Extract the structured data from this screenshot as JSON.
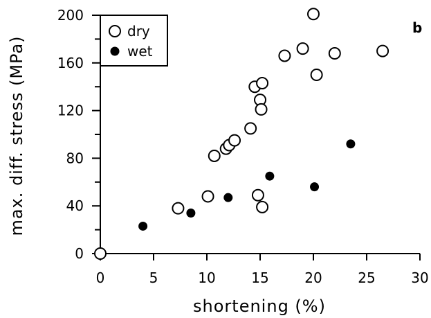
{
  "chart_data": {
    "type": "scatter",
    "panel_label": "b",
    "xlabel": "shortening (%)",
    "ylabel": "max. diff. stress (MPa)",
    "xlim": [
      0,
      30
    ],
    "ylim": [
      0,
      200
    ],
    "x_ticks": [
      0,
      5,
      10,
      15,
      20,
      25,
      30
    ],
    "y_ticks": [
      0,
      40,
      80,
      120,
      160,
      200
    ],
    "legend_position": "top-left",
    "series": [
      {
        "name": "dry",
        "marker": "open-circle",
        "points": [
          [
            0,
            0
          ],
          [
            7.3,
            38
          ],
          [
            10.1,
            48
          ],
          [
            10.7,
            82
          ],
          [
            11.8,
            88
          ],
          [
            12.1,
            91
          ],
          [
            12.6,
            95
          ],
          [
            14.1,
            105
          ],
          [
            14.5,
            140
          ],
          [
            14.8,
            49
          ],
          [
            15.0,
            129
          ],
          [
            15.1,
            121
          ],
          [
            15.2,
            143
          ],
          [
            15.2,
            39
          ],
          [
            17.3,
            166
          ],
          [
            19.0,
            172
          ],
          [
            20.0,
            201
          ],
          [
            20.3,
            150
          ],
          [
            22.0,
            168
          ],
          [
            26.5,
            170
          ]
        ]
      },
      {
        "name": "wet",
        "marker": "filled-circle",
        "points": [
          [
            4.0,
            23
          ],
          [
            8.5,
            34
          ],
          [
            12.0,
            47
          ],
          [
            15.9,
            65
          ],
          [
            20.1,
            56
          ],
          [
            23.5,
            92
          ]
        ]
      }
    ]
  }
}
